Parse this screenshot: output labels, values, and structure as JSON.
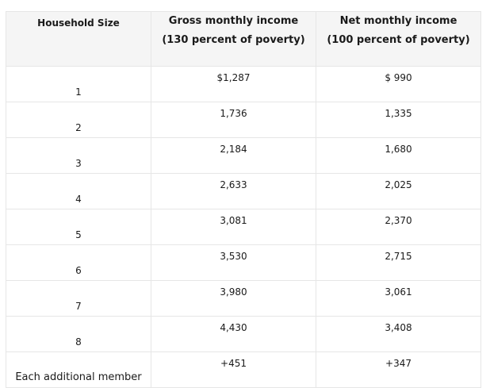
{
  "table": {
    "headers": {
      "household_size": "Household Size",
      "gross_line1": "Gross monthly income",
      "gross_line2": "(130 percent of poverty)",
      "net_line1": "Net monthly income",
      "net_line2": "(100 percent of poverty)"
    },
    "rows": [
      {
        "size": "1",
        "gross": "$1,287",
        "net": "$ 990"
      },
      {
        "size": "2",
        "gross": "1,736",
        "net": "1,335"
      },
      {
        "size": "3",
        "gross": "2,184",
        "net": "1,680"
      },
      {
        "size": "4",
        "gross": "2,633",
        "net": "2,025"
      },
      {
        "size": "5",
        "gross": "3,081",
        "net": "2,370"
      },
      {
        "size": "6",
        "gross": "3,530",
        "net": "2,715"
      },
      {
        "size": "7",
        "gross": "3,980",
        "net": "3,061"
      },
      {
        "size": "8",
        "gross": "4,430",
        "net": "3,408"
      },
      {
        "size": "Each additional member",
        "gross": "+451",
        "net": "+347"
      }
    ]
  }
}
